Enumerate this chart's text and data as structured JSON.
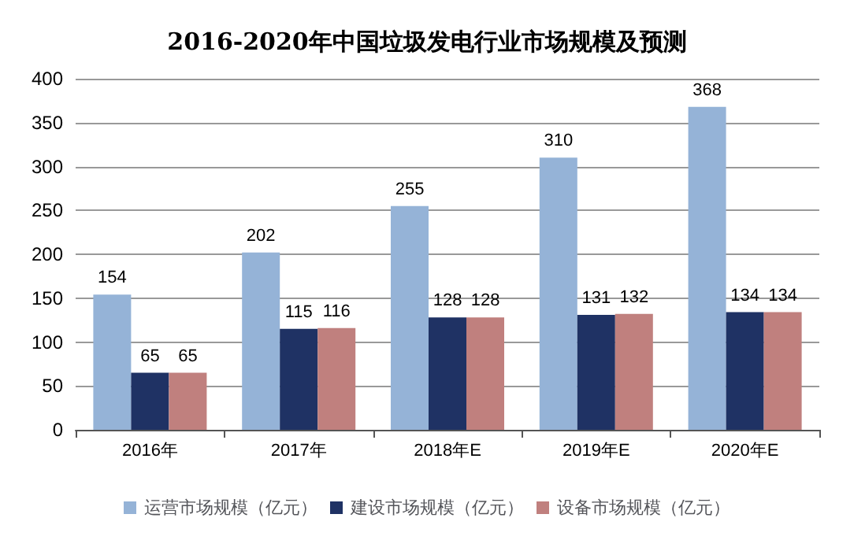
{
  "chart_data": {
    "type": "bar",
    "title": "2016-2020年中国垃圾发电行业市场规模及预测",
    "categories": [
      "2016年",
      "2017年",
      "2018年E",
      "2019年E",
      "2020年E"
    ],
    "series": [
      {
        "name": "运营市场规模（亿元）",
        "color": "#95b3d7",
        "values": [
          154,
          202,
          255,
          310,
          368
        ]
      },
      {
        "name": "建设市场规模（亿元）",
        "color": "#1f3264",
        "values": [
          65,
          115,
          128,
          131,
          134
        ]
      },
      {
        "name": "设备市场规模（亿元）",
        "color": "#c0807e",
        "values": [
          65,
          116,
          128,
          132,
          134
        ]
      }
    ],
    "ylim": [
      0,
      400
    ],
    "yticks": [
      0,
      50,
      100,
      150,
      200,
      250,
      300,
      350,
      400
    ],
    "grid": "y",
    "legend": "bottom",
    "data_labels": true
  }
}
